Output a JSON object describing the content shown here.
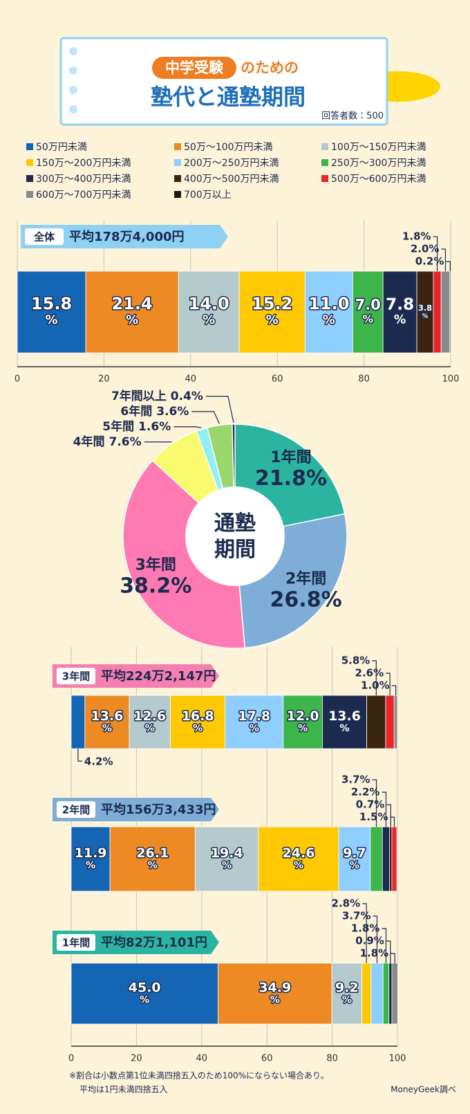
{
  "header": {
    "tag": "中学受験",
    "title_suffix": "のための",
    "title": "塾代と通塾期間",
    "respondents": "回答者数：500"
  },
  "chart_data": [
    {
      "type": "bar",
      "orientation": "horizontal",
      "stacked": true,
      "categories": [
        "全体"
      ],
      "average": "平均178万4,000円",
      "series": [
        {
          "name": "50万円未満",
          "color": "#1565b5",
          "values": [
            15.8
          ],
          "value_labels": [
            "15.8%"
          ]
        },
        {
          "name": "50万～100万円未満",
          "color": "#ee8a23",
          "values": [
            21.4
          ],
          "value_labels": [
            "21.4%"
          ]
        },
        {
          "name": "100万～150万円未満",
          "color": "#b4cacd",
          "values": [
            14.0
          ],
          "value_labels": [
            "14.0%"
          ]
        },
        {
          "name": "150万～200万円未満",
          "color": "#ffc800",
          "values": [
            15.2
          ],
          "value_labels": [
            "15.2%"
          ]
        },
        {
          "name": "200万～250万円未満",
          "color": "#8ecfff",
          "values": [
            11.0
          ],
          "value_labels": [
            "11.0%"
          ]
        },
        {
          "name": "250万～300万円未満",
          "color": "#3cb54a",
          "values": [
            7.0
          ],
          "value_labels": [
            "7.0%"
          ]
        },
        {
          "name": "300万～400万円未満",
          "color": "#1b2a4e",
          "values": [
            7.8
          ],
          "value_labels": [
            "7.8%"
          ]
        },
        {
          "name": "400万～500万円未満",
          "color": "#3a2410",
          "values": [
            3.8
          ],
          "value_labels": [
            "3.8%"
          ]
        },
        {
          "name": "500万～600万円未満",
          "color": "#e8262a",
          "values": [
            1.8
          ],
          "value_labels": [
            "1.8%"
          ]
        },
        {
          "name": "600万～700万円未満",
          "color": "#8a8a8a",
          "values": [
            2.0
          ],
          "value_labels": [
            "2.0%"
          ]
        },
        {
          "name": "700万以上",
          "color": "#1a1a1a",
          "values": [
            0.2
          ],
          "value_labels": [
            "0.2%"
          ]
        }
      ],
      "xlim": [
        0,
        100
      ],
      "xticks": [
        0,
        20,
        40,
        60,
        80,
        100
      ],
      "grid": true
    },
    {
      "type": "pie",
      "donut": true,
      "center_label": "通塾期間",
      "categories": [
        "1年間",
        "2年間",
        "3年間",
        "4年間",
        "5年間",
        "6年間",
        "7年間以上"
      ],
      "values": [
        21.8,
        26.8,
        38.2,
        7.6,
        1.6,
        3.6,
        0.4
      ],
      "value_labels": [
        "21.8%",
        "26.8%",
        "38.2%",
        "7.6%",
        "1.6%",
        "3.6%",
        "0.4%"
      ],
      "colors": [
        "#2bb5a0",
        "#7eaed8",
        "#ff7ab3",
        "#fafa6e",
        "#8ff0f5",
        "#9ad76f",
        "#1b2a4e"
      ]
    },
    {
      "type": "bar",
      "orientation": "horizontal",
      "stacked": true,
      "categories": [
        "3年間",
        "2年間",
        "1年間"
      ],
      "averages": [
        "平均224万2,147円",
        "平均156万3,433円",
        "平均82万1,101円"
      ],
      "series": [
        {
          "values": [
            4.2,
            11.9,
            45.0
          ],
          "value_labels": [
            "4.2%",
            "11.9%",
            "45.0%"
          ]
        },
        {
          "values": [
            13.6,
            26.1,
            34.9
          ],
          "value_labels": [
            "13.6%",
            "26.1%",
            "34.9%"
          ]
        },
        {
          "values": [
            12.6,
            19.4,
            9.2
          ],
          "value_labels": [
            "12.6%",
            "19.4%",
            "9.2%"
          ]
        },
        {
          "values": [
            16.8,
            24.6,
            2.8
          ],
          "value_labels": [
            "16.8%",
            "24.6%",
            "2.8%"
          ]
        },
        {
          "values": [
            17.8,
            9.7,
            3.7
          ],
          "value_labels": [
            "17.8%",
            "9.7%",
            "3.7%"
          ]
        },
        {
          "values": [
            12.0,
            3.7,
            1.8
          ],
          "value_labels": [
            "12.0%",
            "3.7%",
            "1.8%"
          ]
        },
        {
          "values": [
            13.6,
            2.2,
            0.9
          ],
          "value_labels": [
            "13.6%",
            "2.2%",
            "0.9%"
          ]
        },
        {
          "values": [
            5.8,
            0.7,
            0
          ],
          "value_labels": [
            "5.8%",
            "0.7%",
            null
          ]
        },
        {
          "values": [
            2.6,
            1.5,
            0
          ],
          "value_labels": [
            "2.6%",
            "1.5%",
            null
          ]
        },
        {
          "values": [
            1.0,
            0,
            1.8
          ],
          "value_labels": [
            "1.0%",
            null,
            "1.8%"
          ]
        },
        {
          "values": [
            0,
            0,
            0
          ],
          "value_labels": [
            null,
            null,
            null
          ]
        }
      ],
      "xlim": [
        0,
        100
      ],
      "xticks": [
        0,
        20,
        40,
        60,
        80,
        100
      ],
      "grid": true
    }
  ],
  "notes": [
    "※割合は小数点第1位未満四捨五入のため100%にならない場合あり。",
    "平均は1円未満四捨五入"
  ],
  "source": "MoneyGeek調べ"
}
